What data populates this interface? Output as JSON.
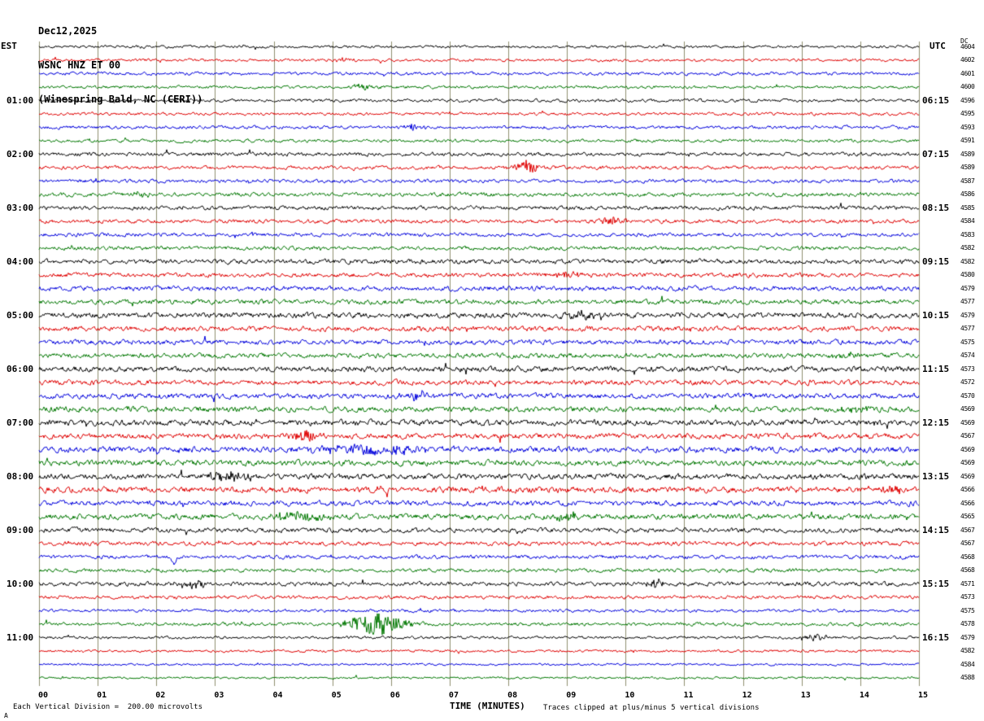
{
  "header": {
    "date": "Dec12,2025",
    "station": "WSNC HNZ ET 00",
    "location": "(Winespring Bald, NC (CERI))"
  },
  "axes": {
    "left_header": "EST",
    "right_header": "UTC",
    "right_outer_header": "DC",
    "x_title": "TIME (MINUTES)",
    "x_ticks": [
      "00",
      "01",
      "02",
      "03",
      "04",
      "05",
      "06",
      "07",
      "08",
      "09",
      "10",
      "11",
      "12",
      "13",
      "14",
      "15"
    ]
  },
  "footer": {
    "scale_note": "Each Vertical Division =  200.00 microvolts",
    "clip_note": "Traces clipped at plus/minus 5 vertical divisions",
    "corner_mark": "A"
  },
  "chart_data": {
    "type": "seismogram",
    "minutes_per_row": 15,
    "x_range": [
      0,
      15
    ],
    "grid": "vertical-minute-lines",
    "grid_color": "#8f8f6f",
    "color_cycle": [
      "black",
      "red",
      "blue",
      "green"
    ],
    "trace_colors": {
      "black": "#000000",
      "red": "#e00000",
      "blue": "#0000dd",
      "green": "#007700"
    },
    "noise_seed": 20251212,
    "rows": [
      {
        "est": "",
        "utc": "",
        "dc": 4604,
        "amp": 1.3
      },
      {
        "est": "",
        "utc": "",
        "dc": 4602,
        "amp": 1.3
      },
      {
        "est": "",
        "utc": "",
        "dc": 4601,
        "amp": 1.5
      },
      {
        "est": "",
        "utc": "",
        "dc": 4600,
        "amp": 1.4
      },
      {
        "est": "01:00",
        "utc": "06:15",
        "dc": 4596,
        "amp": 1.5
      },
      {
        "est": "",
        "utc": "",
        "dc": 4595,
        "amp": 1.4
      },
      {
        "est": "",
        "utc": "",
        "dc": 4593,
        "amp": 1.6
      },
      {
        "est": "",
        "utc": "",
        "dc": 4591,
        "amp": 1.5
      },
      {
        "est": "02:00",
        "utc": "07:15",
        "dc": 4589,
        "amp": 1.8
      },
      {
        "est": "",
        "utc": "",
        "dc": 4589,
        "amp": 1.7
      },
      {
        "est": "",
        "utc": "",
        "dc": 4587,
        "amp": 1.7
      },
      {
        "est": "",
        "utc": "",
        "dc": 4586,
        "amp": 1.9
      },
      {
        "est": "03:00",
        "utc": "08:15",
        "dc": 4585,
        "amp": 1.9
      },
      {
        "est": "",
        "utc": "",
        "dc": 4584,
        "amp": 1.9
      },
      {
        "est": "",
        "utc": "",
        "dc": 4583,
        "amp": 1.8
      },
      {
        "est": "",
        "utc": "",
        "dc": 4582,
        "amp": 1.8
      },
      {
        "est": "04:00",
        "utc": "09:15",
        "dc": 4582,
        "amp": 2.2
      },
      {
        "est": "",
        "utc": "",
        "dc": 4580,
        "amp": 2.1
      },
      {
        "est": "",
        "utc": "",
        "dc": 4579,
        "amp": 2.3
      },
      {
        "est": "",
        "utc": "",
        "dc": 4577,
        "amp": 2.3
      },
      {
        "est": "05:00",
        "utc": "10:15",
        "dc": 4579,
        "amp": 2.6
      },
      {
        "est": "",
        "utc": "",
        "dc": 4577,
        "amp": 2.4
      },
      {
        "est": "",
        "utc": "",
        "dc": 4575,
        "amp": 2.3
      },
      {
        "est": "",
        "utc": "",
        "dc": 4574,
        "amp": 2.3
      },
      {
        "est": "06:00",
        "utc": "11:15",
        "dc": 4573,
        "amp": 2.6
      },
      {
        "est": "",
        "utc": "",
        "dc": 4572,
        "amp": 2.4
      },
      {
        "est": "",
        "utc": "",
        "dc": 4570,
        "amp": 2.5
      },
      {
        "est": "",
        "utc": "",
        "dc": 4569,
        "amp": 2.6
      },
      {
        "est": "07:00",
        "utc": "12:15",
        "dc": 4569,
        "amp": 2.8
      },
      {
        "est": "",
        "utc": "",
        "dc": 4567,
        "amp": 2.6
      },
      {
        "est": "",
        "utc": "",
        "dc": 4569,
        "amp": 2.8
      },
      {
        "est": "",
        "utc": "",
        "dc": 4569,
        "amp": 2.7
      },
      {
        "est": "08:00",
        "utc": "13:15",
        "dc": 4569,
        "amp": 2.7
      },
      {
        "est": "",
        "utc": "",
        "dc": 4566,
        "amp": 2.8
      },
      {
        "est": "",
        "utc": "",
        "dc": 4566,
        "amp": 2.5
      },
      {
        "est": "",
        "utc": "",
        "dc": 4565,
        "amp": 2.6
      },
      {
        "est": "09:00",
        "utc": "14:15",
        "dc": 4567,
        "amp": 2.2
      },
      {
        "est": "",
        "utc": "",
        "dc": 4567,
        "amp": 2.0
      },
      {
        "est": "",
        "utc": "",
        "dc": 4568,
        "amp": 1.8
      },
      {
        "est": "",
        "utc": "",
        "dc": 4568,
        "amp": 1.7
      },
      {
        "est": "10:00",
        "utc": "15:15",
        "dc": 4571,
        "amp": 2.0
      },
      {
        "est": "",
        "utc": "",
        "dc": 4573,
        "amp": 1.6
      },
      {
        "est": "",
        "utc": "",
        "dc": 4575,
        "amp": 1.4
      },
      {
        "est": "",
        "utc": "",
        "dc": 4578,
        "amp": 1.6
      },
      {
        "est": "11:00",
        "utc": "16:15",
        "dc": 4579,
        "amp": 1.3
      },
      {
        "est": "",
        "utc": "",
        "dc": 4582,
        "amp": 1.2
      },
      {
        "est": "",
        "utc": "",
        "dc": 4584,
        "amp": 1.1
      },
      {
        "est": "",
        "utc": "",
        "dc": 4588,
        "amp": 1.0
      }
    ],
    "events": [
      {
        "row": 1,
        "minute": 5.2,
        "amp": 3,
        "width": 0.2
      },
      {
        "row": 3,
        "minute": 5.6,
        "amp": 3,
        "width": 0.25
      },
      {
        "row": 6,
        "minute": 6.4,
        "amp": 5,
        "width": 0.15
      },
      {
        "row": 9,
        "minute": 8.3,
        "amp": 8,
        "width": 0.22
      },
      {
        "row": 11,
        "minute": 1.8,
        "amp": 4,
        "width": 0.15
      },
      {
        "row": 13,
        "minute": 9.8,
        "amp": 6,
        "width": 0.2
      },
      {
        "row": 17,
        "minute": 9.0,
        "amp": 4,
        "width": 0.3
      },
      {
        "row": 20,
        "minute": 9.3,
        "amp": 4,
        "width": 0.35
      },
      {
        "row": 23,
        "minute": 13.8,
        "amp": 4,
        "width": 0.25
      },
      {
        "row": 26,
        "minute": 6.4,
        "amp": 4,
        "width": 0.3
      },
      {
        "row": 27,
        "minute": 13.9,
        "amp": 4,
        "width": 0.25
      },
      {
        "row": 29,
        "minute": 4.5,
        "amp": 7,
        "width": 0.25
      },
      {
        "row": 30,
        "minute": 5.6,
        "amp": 5,
        "width": 1.0
      },
      {
        "row": 32,
        "minute": 3.3,
        "amp": 5,
        "width": 0.4
      },
      {
        "row": 33,
        "minute": 14.5,
        "amp": 5,
        "width": 0.3
      },
      {
        "row": 35,
        "minute": 4.4,
        "amp": 6,
        "width": 0.4
      },
      {
        "row": 35,
        "minute": 9.0,
        "amp": 4,
        "width": 0.3
      },
      {
        "row": 38,
        "minute": 2.3,
        "amp": 9,
        "width": 0.05,
        "dir": -1
      },
      {
        "row": 40,
        "minute": 2.6,
        "amp": 5,
        "width": 0.3
      },
      {
        "row": 40,
        "minute": 10.5,
        "amp": 6,
        "width": 0.15
      },
      {
        "row": 43,
        "minute": 5.75,
        "amp": 14,
        "width": 0.45
      },
      {
        "row": 44,
        "minute": 13.2,
        "amp": 3,
        "width": 0.3
      }
    ]
  }
}
